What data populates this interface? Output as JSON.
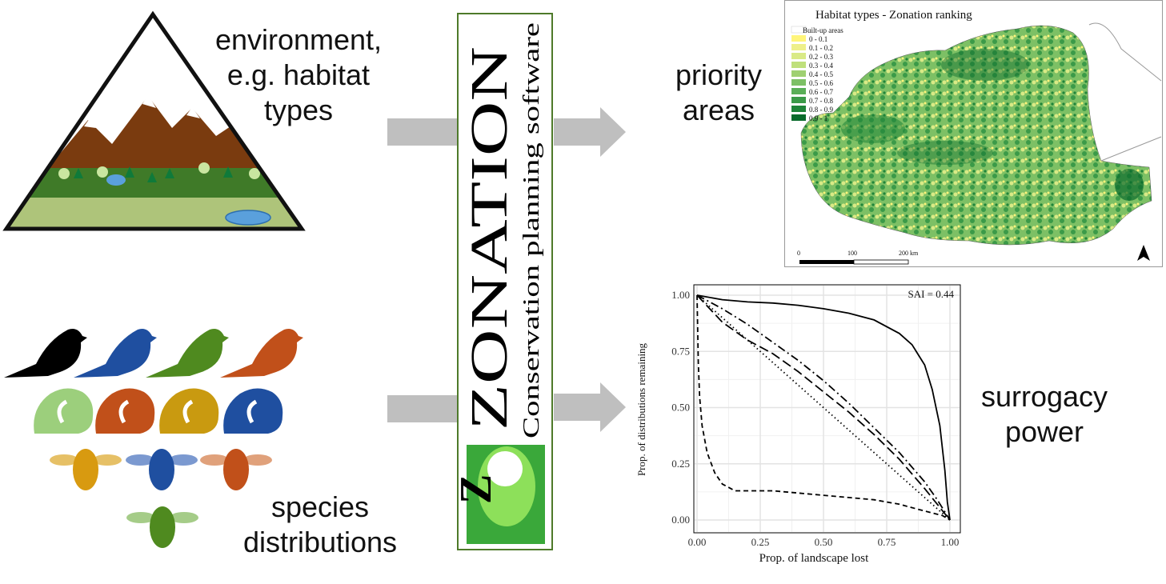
{
  "labels": {
    "environment": [
      "environment,",
      "e.g. habitat",
      "types"
    ],
    "priority": [
      "priority",
      "areas"
    ],
    "surrogacy": [
      "surrogacy",
      "power"
    ],
    "species": [
      "species",
      "distributions"
    ]
  },
  "zonation": {
    "title": "ZONATION",
    "subtitle": "Conservation planning software",
    "logo_letter": "Z"
  },
  "map": {
    "title": "Habitat types - Zonation ranking",
    "legend": [
      {
        "label": "Built-up areas",
        "color": "#ffffff"
      },
      {
        "label": "0 - 0.1",
        "color": "#fff57a"
      },
      {
        "label": "0.1 - 0.2",
        "color": "#eef08a"
      },
      {
        "label": "0.2 - 0.3",
        "color": "#d9ea86"
      },
      {
        "label": "0.3 - 0.4",
        "color": "#bfe07b"
      },
      {
        "label": "0.4 - 0.5",
        "color": "#9fd071"
      },
      {
        "label": "0.5 - 0.6",
        "color": "#7dc065"
      },
      {
        "label": "0.6 - 0.7",
        "color": "#5aae57"
      },
      {
        "label": "0.7 - 0.8",
        "color": "#3b9a48"
      },
      {
        "label": "0.8 - 0.9",
        "color": "#1f8439"
      },
      {
        "label": "0.9 - 1",
        "color": "#0a6b2c"
      }
    ],
    "scale_labels": [
      "0",
      "100",
      "200 km"
    ]
  },
  "chart_data": {
    "type": "line",
    "title": "",
    "xlabel": "Prop. of landscape lost",
    "ylabel": "Prop. of distributions remaining",
    "xlim": [
      0,
      1
    ],
    "ylim": [
      0,
      1
    ],
    "xticks": [
      "0.00",
      "0.25",
      "0.50",
      "0.75",
      "1.00"
    ],
    "yticks": [
      "0.00",
      "0.25",
      "0.50",
      "0.75",
      "1.00"
    ],
    "grid": true,
    "annotation": "SAI = 0.44",
    "series": [
      {
        "style": "solid",
        "x": [
          0,
          0.1,
          0.2,
          0.3,
          0.4,
          0.5,
          0.6,
          0.7,
          0.8,
          0.85,
          0.9,
          0.93,
          0.96,
          0.98,
          0.99,
          1.0
        ],
        "y": [
          1.0,
          0.98,
          0.97,
          0.965,
          0.955,
          0.94,
          0.92,
          0.89,
          0.83,
          0.78,
          0.69,
          0.58,
          0.42,
          0.22,
          0.08,
          0.0
        ]
      },
      {
        "style": "dashdot",
        "x": [
          0,
          0.1,
          0.2,
          0.3,
          0.4,
          0.5,
          0.6,
          0.7,
          0.8,
          0.9,
          0.95,
          1.0
        ],
        "y": [
          1.0,
          0.94,
          0.87,
          0.79,
          0.71,
          0.62,
          0.52,
          0.41,
          0.3,
          0.17,
          0.09,
          0.0
        ]
      },
      {
        "style": "longdash",
        "x": [
          0,
          0.1,
          0.2,
          0.3,
          0.4,
          0.5,
          0.6,
          0.7,
          0.8,
          0.9,
          1.0
        ],
        "y": [
          1.0,
          0.88,
          0.8,
          0.74,
          0.66,
          0.57,
          0.48,
          0.38,
          0.27,
          0.14,
          0.0
        ]
      },
      {
        "style": "dotted",
        "x": [
          0,
          0.2,
          0.4,
          0.6,
          0.8,
          1.0
        ],
        "y": [
          1.0,
          0.8,
          0.6,
          0.4,
          0.2,
          0.0
        ]
      },
      {
        "style": "dashed",
        "x": [
          0,
          0.005,
          0.01,
          0.02,
          0.04,
          0.07,
          0.1,
          0.15,
          0.3,
          0.5,
          0.6,
          0.7,
          0.8,
          0.9,
          0.97,
          1.0
        ],
        "y": [
          1.0,
          0.7,
          0.55,
          0.42,
          0.3,
          0.21,
          0.16,
          0.13,
          0.13,
          0.11,
          0.1,
          0.09,
          0.07,
          0.04,
          0.02,
          0.0
        ]
      }
    ]
  }
}
